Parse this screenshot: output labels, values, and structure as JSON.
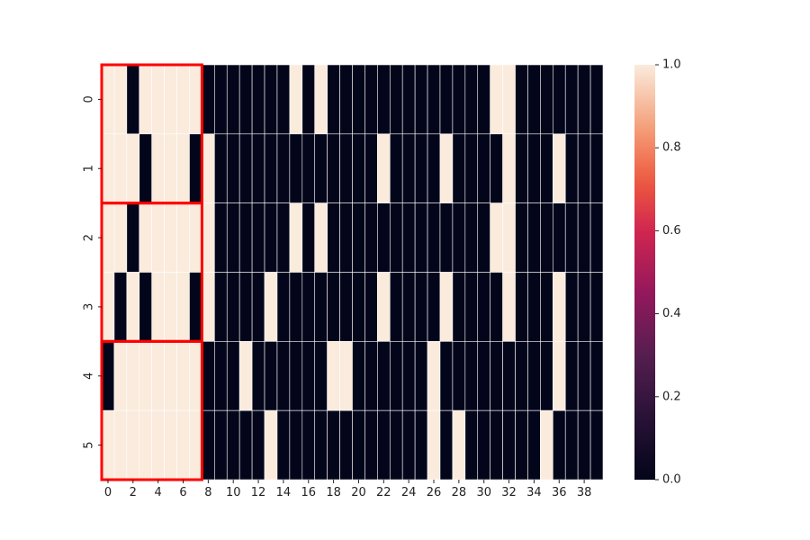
{
  "chart_data": {
    "type": "heatmap",
    "title": "",
    "xlabel": "",
    "ylabel": "",
    "x_tick_labels": [
      "0",
      "2",
      "4",
      "6",
      "8",
      "10",
      "12",
      "14",
      "16",
      "18",
      "20",
      "22",
      "24",
      "26",
      "28",
      "30",
      "32",
      "34",
      "36",
      "38"
    ],
    "y_tick_labels": [
      "0",
      "1",
      "2",
      "3",
      "4",
      "5"
    ],
    "colorbar": {
      "min": 0.0,
      "max": 1.0,
      "tick_labels": [
        "0.0",
        "0.2",
        "0.4",
        "0.6",
        "0.8",
        "1.0"
      ],
      "tick_values": [
        0.0,
        0.2,
        0.4,
        0.6,
        0.8,
        1.0
      ],
      "colormap": "rocket",
      "low_color": "#03051a",
      "high_color": "#faebdd"
    },
    "grid": "white cell separators",
    "values": [
      [
        1,
        1,
        0,
        1,
        1,
        1,
        1,
        1,
        0,
        0,
        0,
        0,
        0,
        0,
        0,
        1,
        0,
        1,
        0,
        0,
        0,
        0,
        0,
        0,
        0,
        0,
        0,
        0,
        0,
        0,
        0,
        1,
        1,
        0,
        0,
        0,
        0,
        0,
        0,
        0
      ],
      [
        1,
        1,
        1,
        0,
        1,
        1,
        1,
        0,
        1,
        0,
        0,
        0,
        0,
        0,
        0,
        0,
        0,
        0,
        0,
        0,
        0,
        0,
        1,
        0,
        0,
        0,
        0,
        1,
        0,
        0,
        0,
        0,
        1,
        0,
        0,
        0,
        1,
        0,
        0,
        0
      ],
      [
        1,
        1,
        0,
        1,
        1,
        1,
        1,
        1,
        1,
        0,
        0,
        0,
        0,
        0,
        0,
        1,
        0,
        1,
        0,
        0,
        0,
        0,
        0,
        0,
        0,
        0,
        0,
        0,
        0,
        0,
        0,
        1,
        1,
        0,
        0,
        0,
        0,
        0,
        0,
        0
      ],
      [
        1,
        0,
        1,
        0,
        1,
        1,
        1,
        0,
        1,
        0,
        0,
        0,
        0,
        1,
        0,
        0,
        0,
        0,
        0,
        0,
        0,
        0,
        1,
        0,
        0,
        0,
        0,
        1,
        0,
        0,
        0,
        0,
        1,
        0,
        0,
        0,
        1,
        0,
        0,
        0
      ],
      [
        0,
        1,
        1,
        1,
        1,
        1,
        1,
        1,
        0,
        0,
        0,
        1,
        0,
        0,
        0,
        0,
        0,
        0,
        1,
        1,
        0,
        0,
        0,
        0,
        0,
        0,
        1,
        0,
        0,
        0,
        0,
        0,
        0,
        0,
        0,
        0,
        1,
        0,
        0,
        0
      ],
      [
        1,
        1,
        1,
        1,
        1,
        1,
        1,
        1,
        0,
        0,
        0,
        0,
        0,
        1,
        0,
        0,
        0,
        0,
        0,
        0,
        0,
        0,
        0,
        0,
        0,
        0,
        1,
        0,
        1,
        0,
        0,
        0,
        0,
        0,
        0,
        1,
        0,
        0,
        0,
        0
      ]
    ],
    "annotations": [
      {
        "type": "highlight-box",
        "color": "#ff0000",
        "rows": [
          0,
          1
        ],
        "cols": [
          0,
          7
        ]
      },
      {
        "type": "highlight-box",
        "color": "#ff0000",
        "rows": [
          2,
          3
        ],
        "cols": [
          0,
          7
        ]
      },
      {
        "type": "highlight-box",
        "color": "#ff0000",
        "rows": [
          4,
          5
        ],
        "cols": [
          0,
          7
        ]
      }
    ]
  }
}
